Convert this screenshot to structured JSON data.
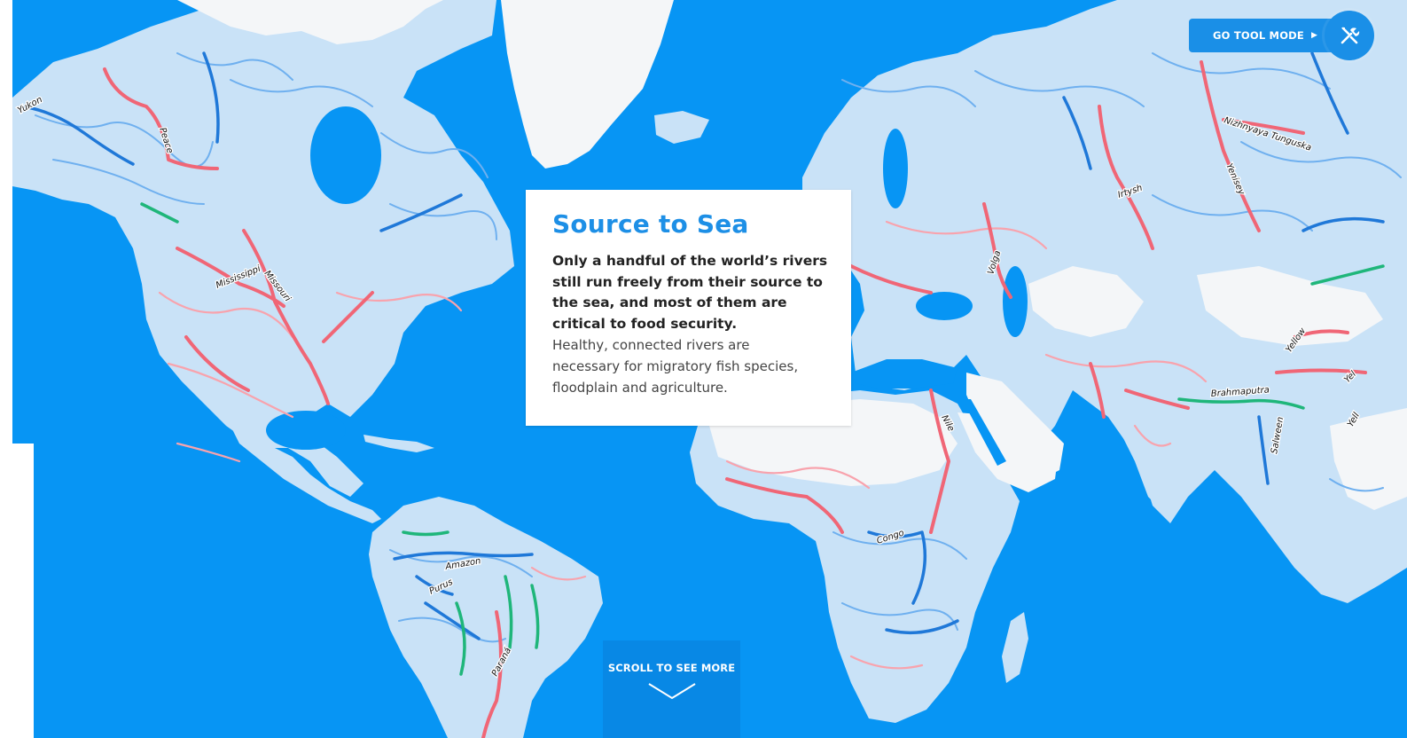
{
  "map": {
    "colors": {
      "ocean": "#0795f4",
      "land": "#c9e2f7",
      "unaffected_land": "#f4f6f8",
      "free_flowing": "#1f78d8",
      "impacted": "#f06676",
      "good_connectivity": "#1fb67a"
    },
    "river_labels": [
      "Yukon",
      "Peace",
      "Mississippi",
      "Missouri",
      "Amazon",
      "Purus",
      "Paraná",
      "Congo",
      "Nile",
      "Volga",
      "Irtysh",
      "Yenisey",
      "Nizhnyaya Tunguska",
      "Brahmaputra",
      "Salween",
      "Yellow",
      "Yel",
      "Yell"
    ]
  },
  "info_card": {
    "title": "Source to Sea",
    "lead": "Only a handful of the world’s rivers still run freely from their source to the sea, and most of them are critical to food security.",
    "body": "Healthy, connected rivers are necessary for migratory fish species, floodplain and agriculture."
  },
  "tool_mode": {
    "label": "GO TOOL MODE",
    "arrow_icon": "play-arrow-icon",
    "icon": "tools-icon"
  },
  "scroll_hint": {
    "label": "SCROLL TO SEE MORE",
    "icon": "chevron-down-icon"
  }
}
